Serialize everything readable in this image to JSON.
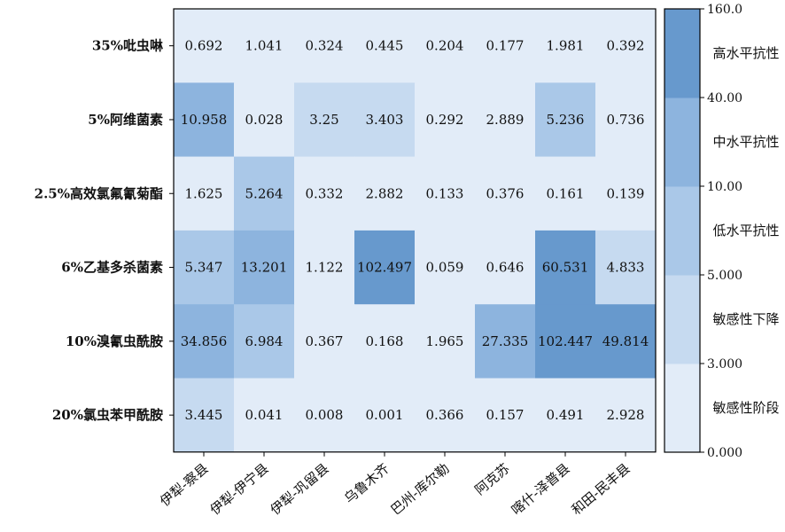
{
  "chart_data": {
    "type": "heatmap",
    "rows": [
      "35%吡虫啉",
      "5%阿维菌素",
      "2.5%高效氯氟氰菊酯",
      "6%乙基多杀菌素",
      "10%溴氰虫酰胺",
      "20%氯虫苯甲酰胺"
    ],
    "columns": [
      "伊犁-察县",
      "伊犁-伊宁县",
      "伊犁-巩留县",
      "乌鲁木齐",
      "巴州-库尔勒",
      "阿克苏",
      "喀什-泽普县",
      "和田-民丰县"
    ],
    "values": [
      [
        0.692,
        1.041,
        0.324,
        0.445,
        0.204,
        0.177,
        1.981,
        0.392
      ],
      [
        10.958,
        0.028,
        3.25,
        3.403,
        0.292,
        2.889,
        5.236,
        0.736
      ],
      [
        1.625,
        5.264,
        0.332,
        2.882,
        0.133,
        0.376,
        0.161,
        0.139
      ],
      [
        5.347,
        13.201,
        1.122,
        102.497,
        0.059,
        0.646,
        60.531,
        4.833
      ],
      [
        34.856,
        6.984,
        0.367,
        0.168,
        1.965,
        27.335,
        102.447,
        49.814
      ],
      [
        3.445,
        0.041,
        0.008,
        0.001,
        0.366,
        0.157,
        0.491,
        2.928
      ]
    ],
    "value_labels": [
      [
        "0.692",
        "1.041",
        "0.324",
        "0.445",
        "0.204",
        "0.177",
        "1.981",
        "0.392"
      ],
      [
        "10.958",
        "0.028",
        "3.25",
        "3.403",
        "0.292",
        "2.889",
        "5.236",
        "0.736"
      ],
      [
        "1.625",
        "5.264",
        "0.332",
        "2.882",
        "0.133",
        "0.376",
        "0.161",
        "0.139"
      ],
      [
        "5.347",
        "13.201",
        "1.122",
        "102.497",
        "0.059",
        "0.646",
        "60.531",
        "4.833"
      ],
      [
        "34.856",
        "6.984",
        "0.367",
        "0.168",
        "1.965",
        "27.335",
        "102.447",
        "49.814"
      ],
      [
        "3.445",
        "0.041",
        "0.008",
        "0.001",
        "0.366",
        "0.157",
        "0.491",
        "2.928"
      ]
    ],
    "colorbar": {
      "tick_values": [
        0,
        3,
        5,
        10,
        40,
        160
      ],
      "tick_labels": [
        "0.000",
        "3.000",
        "5.000",
        "10.00",
        "40.00",
        "160.0"
      ],
      "bands": [
        {
          "from": 0,
          "to": 3,
          "label": "敏感性阶段",
          "color": "#e2ecf8"
        },
        {
          "from": 3,
          "to": 5,
          "label": "敏感性下降",
          "color": "#c6daf0"
        },
        {
          "from": 5,
          "to": 10,
          "label": "低水平抗性",
          "color": "#aac8e8"
        },
        {
          "from": 10,
          "to": 40,
          "label": "中水平抗性",
          "color": "#8db4de"
        },
        {
          "from": 40,
          "to": 160,
          "label": "高水平抗性",
          "color": "#6799cd"
        }
      ]
    }
  }
}
